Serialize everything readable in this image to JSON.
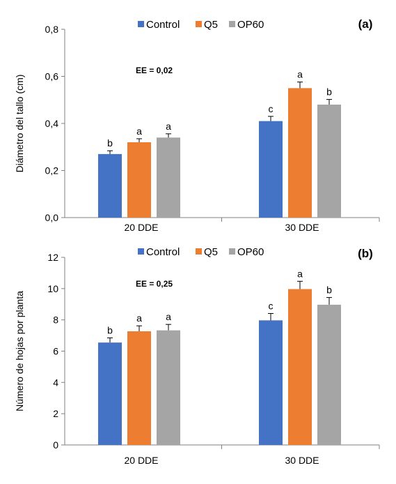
{
  "chart_data": [
    {
      "type": "bar",
      "panel_label": "(a)",
      "ylabel": "Diámetro del tallo (cm)",
      "categories": [
        "20 DDE",
        "30 DDE"
      ],
      "ylim": [
        0,
        0.8
      ],
      "yticks": [
        0.0,
        0.2,
        0.4,
        0.6,
        0.8
      ],
      "ytick_labels": [
        "0,0",
        "0,2",
        "0,4",
        "0,6",
        "0,8"
      ],
      "ee_label": "EE = 0,02",
      "legend_position": "top-center",
      "grid": false,
      "series": [
        {
          "name": "Control",
          "color": "#4472c4",
          "values": [
            0.27,
            0.41
          ],
          "errors": [
            0.014,
            0.02
          ],
          "letters": [
            "b",
            "c"
          ]
        },
        {
          "name": "Q5",
          "color": "#ed7d31",
          "values": [
            0.32,
            0.55
          ],
          "errors": [
            0.015,
            0.026
          ],
          "letters": [
            "a",
            "a"
          ]
        },
        {
          "name": "OP60",
          "color": "#a5a5a5",
          "values": [
            0.34,
            0.48
          ],
          "errors": [
            0.016,
            0.022
          ],
          "letters": [
            "a",
            "b"
          ]
        }
      ]
    },
    {
      "type": "bar",
      "panel_label": "(b)",
      "ylabel": "Número de hojas por planta",
      "categories": [
        "20 DDE",
        "30 DDE"
      ],
      "ylim": [
        0,
        12
      ],
      "yticks": [
        0,
        2,
        4,
        6,
        8,
        10,
        12
      ],
      "ytick_labels": [
        "0",
        "2",
        "4",
        "6",
        "8",
        "10",
        "12"
      ],
      "ee_label": "EE = 0,25",
      "legend_position": "top-center",
      "grid": false,
      "series": [
        {
          "name": "Control",
          "color": "#4472c4",
          "values": [
            6.55,
            7.97
          ],
          "errors": [
            0.3,
            0.44
          ],
          "letters": [
            "b",
            "c"
          ]
        },
        {
          "name": "Q5",
          "color": "#ed7d31",
          "values": [
            7.27,
            9.97
          ],
          "errors": [
            0.35,
            0.5
          ],
          "letters": [
            "a",
            "a"
          ]
        },
        {
          "name": "OP60",
          "color": "#a5a5a5",
          "values": [
            7.33,
            8.97
          ],
          "errors": [
            0.38,
            0.46
          ],
          "letters": [
            "a",
            "b"
          ]
        }
      ]
    }
  ]
}
